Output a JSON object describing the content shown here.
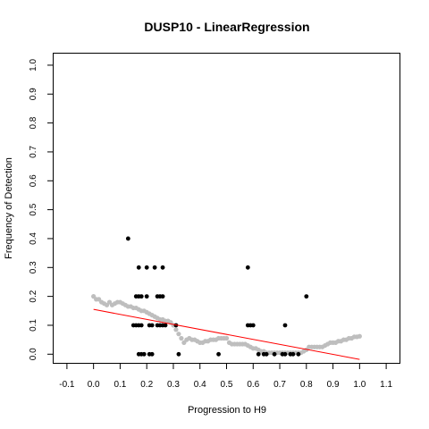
{
  "chart_data": {
    "type": "scatter",
    "title": "DUSP10 - LinearRegression",
    "xlabel": "Progression to H9",
    "ylabel": "Frequency of Detection",
    "xlim": [
      -0.15,
      1.15
    ],
    "ylim": [
      -0.03,
      1.04
    ],
    "x_ticks": [
      -0.1,
      0.0,
      0.1,
      0.2,
      0.3,
      0.4,
      0.5,
      0.6,
      0.7,
      0.8,
      0.9,
      1.0,
      1.1
    ],
    "x_tick_labels": [
      "-0.1",
      "0.0",
      "0.1",
      "0.2",
      "0.3",
      "0.4",
      "0.5",
      "0.6",
      "0.7",
      "0.8",
      "0.9",
      "1.0",
      "1.1"
    ],
    "y_ticks": [
      0.0,
      0.1,
      0.2,
      0.3,
      0.4,
      0.5,
      0.6,
      0.7,
      0.8,
      0.9,
      1.0
    ],
    "y_tick_labels": [
      "0.0",
      "0.1",
      "0.2",
      "0.3",
      "0.4",
      "0.5",
      "0.6",
      "0.7",
      "0.8",
      "0.9",
      "1.0"
    ],
    "grid": false,
    "legend": "none",
    "colors": {
      "points": "#000000",
      "smooth": "#bebebe",
      "regression": "#ff0000"
    },
    "series": [
      {
        "kind": "points",
        "x": [
          0.13,
          0.15,
          0.16,
          0.17,
          0.17,
          0.16,
          0.17,
          0.18,
          0.17,
          0.18,
          0.18,
          0.19,
          0.2,
          0.2,
          0.21,
          0.21,
          0.22,
          0.22,
          0.23,
          0.24,
          0.24,
          0.25,
          0.25,
          0.26,
          0.26,
          0.26,
          0.27,
          0.31,
          0.32,
          0.47,
          0.58,
          0.58,
          0.59,
          0.6,
          0.62,
          0.64,
          0.65,
          0.68,
          0.71,
          0.72,
          0.72,
          0.74,
          0.75,
          0.77,
          0.8
        ],
        "y": [
          0.4,
          0.1,
          0.2,
          0.2,
          0.1,
          0.1,
          0.3,
          0.1,
          0.0,
          0.2,
          0.0,
          0.0,
          0.3,
          0.2,
          0.1,
          0.0,
          0.1,
          0.0,
          0.3,
          0.2,
          0.1,
          0.2,
          0.1,
          0.3,
          0.2,
          0.1,
          0.1,
          0.1,
          0.0,
          0.0,
          0.3,
          0.1,
          0.1,
          0.1,
          0.0,
          0.0,
          0.0,
          0.0,
          0.0,
          0.1,
          0.0,
          0.0,
          0.0,
          0.0,
          0.2
        ]
      },
      {
        "kind": "smooth",
        "x": [
          0.0,
          0.01,
          0.02,
          0.03,
          0.04,
          0.05,
          0.06,
          0.07,
          0.08,
          0.09,
          0.1,
          0.11,
          0.12,
          0.13,
          0.14,
          0.15,
          0.16,
          0.17,
          0.18,
          0.19,
          0.2,
          0.21,
          0.22,
          0.23,
          0.24,
          0.25,
          0.26,
          0.27,
          0.28,
          0.29,
          0.3,
          0.31,
          0.32,
          0.33,
          0.34,
          0.35,
          0.36,
          0.37,
          0.38,
          0.39,
          0.4,
          0.41,
          0.42,
          0.43,
          0.44,
          0.45,
          0.46,
          0.47,
          0.48,
          0.49,
          0.5,
          0.51,
          0.52,
          0.53,
          0.54,
          0.55,
          0.56,
          0.57,
          0.58,
          0.59,
          0.6,
          0.61,
          0.62,
          0.63,
          0.64,
          0.65,
          0.66,
          0.67,
          0.68,
          0.69,
          0.7,
          0.71,
          0.72,
          0.73,
          0.74,
          0.75,
          0.76,
          0.77,
          0.78,
          0.79,
          0.8,
          0.81,
          0.82,
          0.83,
          0.84,
          0.85,
          0.86,
          0.87,
          0.88,
          0.89,
          0.9,
          0.91,
          0.92,
          0.93,
          0.94,
          0.95,
          0.96,
          0.97,
          0.98,
          0.99,
          1.0
        ],
        "y": [
          0.2,
          0.19,
          0.19,
          0.18,
          0.175,
          0.17,
          0.18,
          0.17,
          0.175,
          0.18,
          0.18,
          0.175,
          0.17,
          0.165,
          0.165,
          0.16,
          0.16,
          0.155,
          0.15,
          0.15,
          0.145,
          0.14,
          0.135,
          0.13,
          0.125,
          0.12,
          0.12,
          0.115,
          0.115,
          0.11,
          0.1,
          0.085,
          0.07,
          0.055,
          0.04,
          0.05,
          0.055,
          0.05,
          0.05,
          0.045,
          0.04,
          0.04,
          0.045,
          0.045,
          0.05,
          0.05,
          0.05,
          0.055,
          0.055,
          0.055,
          0.055,
          0.04,
          0.035,
          0.035,
          0.035,
          0.035,
          0.035,
          0.035,
          0.03,
          0.025,
          0.02,
          0.02,
          0.015,
          0.01,
          0.01,
          0.005,
          0.005,
          0.005,
          0.005,
          0.005,
          0.005,
          0.005,
          0.005,
          0.005,
          0.005,
          0.005,
          0.005,
          0.005,
          0.005,
          0.01,
          0.015,
          0.025,
          0.025,
          0.025,
          0.025,
          0.025,
          0.025,
          0.03,
          0.035,
          0.04,
          0.04,
          0.04,
          0.045,
          0.045,
          0.05,
          0.05,
          0.055,
          0.055,
          0.06,
          0.06,
          0.062
        ]
      },
      {
        "kind": "line",
        "x": [
          0.0,
          1.0
        ],
        "y": [
          0.155,
          -0.018
        ]
      }
    ]
  }
}
